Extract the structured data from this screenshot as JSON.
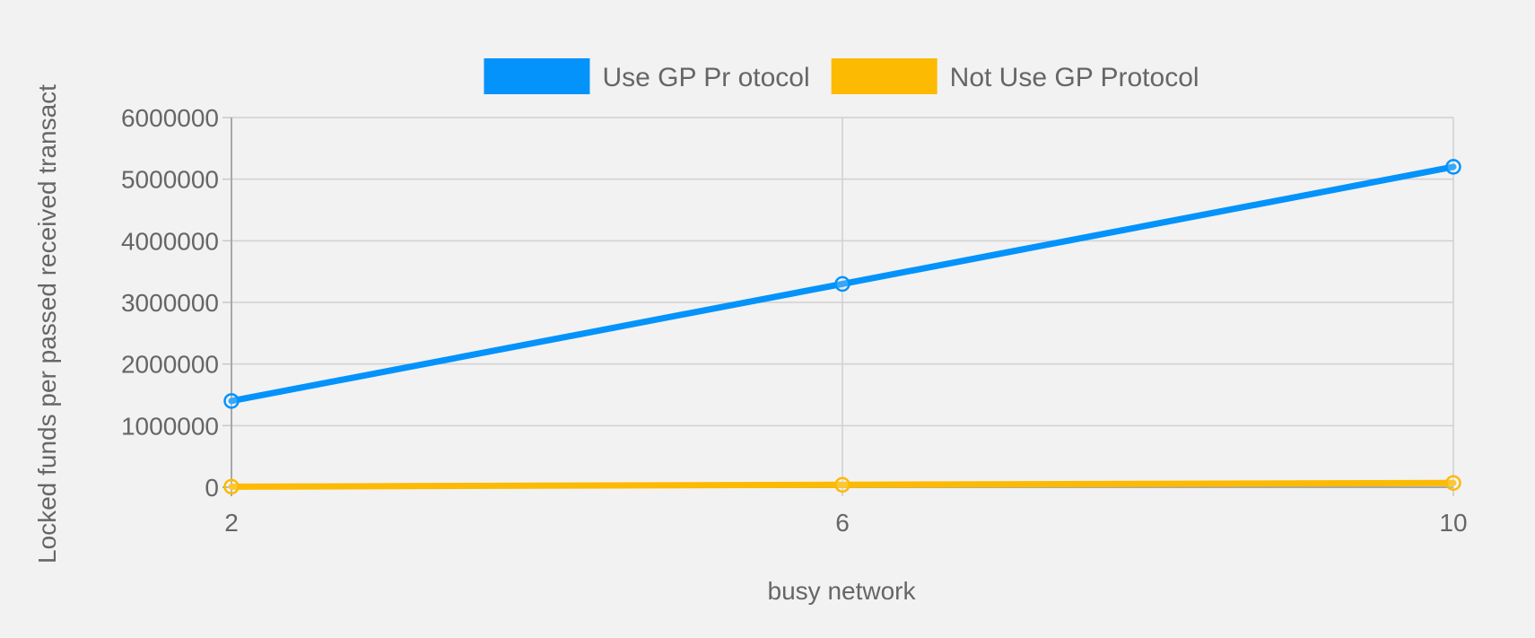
{
  "chart_data": {
    "type": "line",
    "title": "",
    "xlabel": "busy network",
    "ylabel": "Locked funds per passed received transact",
    "x": [
      2,
      6,
      10
    ],
    "x_tick_labels": [
      "2",
      "6",
      "10"
    ],
    "ylim": [
      0,
      6000000
    ],
    "y_tick_labels": [
      "0",
      "1000000",
      "2000000",
      "3000000",
      "4000000",
      "5000000",
      "6000000"
    ],
    "grid": true,
    "legend_position": "top",
    "series": [
      {
        "name": "Use GP Pr otocol",
        "color": "#0393fa",
        "values": [
          1400000,
          3300000,
          5200000
        ]
      },
      {
        "name": "Not Use GP Protocol",
        "color": "#fcba03",
        "values": [
          10000,
          40000,
          70000
        ]
      }
    ]
  }
}
